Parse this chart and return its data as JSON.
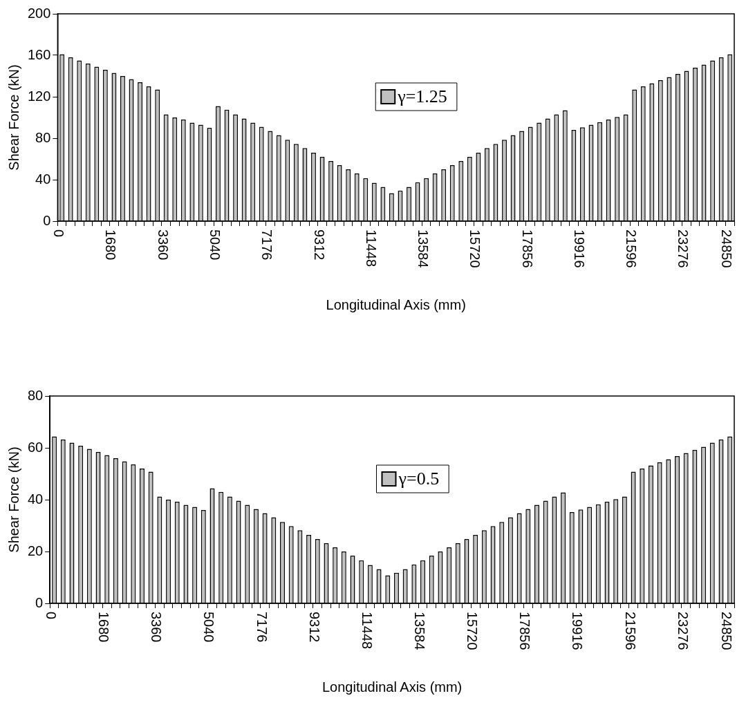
{
  "chart_data": [
    {
      "type": "bar",
      "xlabel": "Longitudinal Axis (mm)",
      "ylabel": "Shear Force (kN)",
      "legend": "center",
      "ylim": [
        0,
        200
      ],
      "yticks": [
        0,
        40,
        80,
        120,
        160,
        200
      ],
      "categories": [
        "0",
        null,
        null,
        null,
        null,
        null,
        "1680",
        null,
        null,
        null,
        null,
        null,
        "3360",
        null,
        null,
        null,
        null,
        null,
        "5040",
        null,
        null,
        null,
        null,
        null,
        "7176",
        null,
        null,
        null,
        null,
        null,
        "9312",
        null,
        null,
        null,
        null,
        null,
        "11448",
        null,
        null,
        null,
        null,
        null,
        "13584",
        null,
        null,
        null,
        null,
        null,
        "15720",
        null,
        null,
        null,
        null,
        null,
        "17856",
        null,
        null,
        null,
        null,
        null,
        "19916",
        null,
        null,
        null,
        null,
        null,
        "21596",
        null,
        null,
        null,
        null,
        null,
        "23276",
        null,
        null,
        null,
        null,
        "24850"
      ],
      "series": [
        {
          "name": "γ=1.25",
          "color": "#c0c0c0",
          "values": [
            161,
            158,
            155,
            152,
            149,
            146,
            143,
            140,
            137,
            134,
            130,
            127,
            103,
            100,
            98,
            95,
            93,
            90,
            111,
            107.5,
            103,
            99,
            95,
            91,
            87,
            83,
            78.5,
            74.5,
            70.5,
            66,
            62,
            58,
            54,
            50,
            46,
            41.5,
            37,
            33,
            27,
            29.5,
            33,
            37.5,
            41.5,
            46,
            50,
            54,
            58,
            62,
            66,
            70.5,
            74.5,
            78.5,
            83,
            87,
            91,
            95,
            99,
            103,
            107,
            88,
            90.5,
            93,
            95.5,
            98,
            100.5,
            103,
            127,
            130,
            133,
            136,
            139,
            142,
            145,
            148,
            151,
            155,
            158,
            161
          ]
        }
      ]
    },
    {
      "type": "bar",
      "xlabel": "Longitudinal Axis (mm)",
      "ylabel": "Shear Force (kN)",
      "legend": "center",
      "ylim": [
        0,
        80
      ],
      "yticks": [
        0,
        20,
        40,
        60,
        80
      ],
      "categories": [
        "0",
        null,
        null,
        null,
        null,
        null,
        "1680",
        null,
        null,
        null,
        null,
        null,
        "3360",
        null,
        null,
        null,
        null,
        null,
        "5040",
        null,
        null,
        null,
        null,
        null,
        "7176",
        null,
        null,
        null,
        null,
        null,
        "9312",
        null,
        null,
        null,
        null,
        null,
        "11448",
        null,
        null,
        null,
        null,
        null,
        "13584",
        null,
        null,
        null,
        null,
        null,
        "15720",
        null,
        null,
        null,
        null,
        null,
        "17856",
        null,
        null,
        null,
        null,
        null,
        "19916",
        null,
        null,
        null,
        null,
        null,
        "21596",
        null,
        null,
        null,
        null,
        null,
        "23276",
        null,
        null,
        null,
        null,
        "24850"
      ],
      "series": [
        {
          "name": "γ=0.5",
          "color": "#c0c0c0",
          "values": [
            64.4,
            63.2,
            62,
            60.8,
            59.6,
            58.4,
            57.2,
            56,
            54.8,
            53.6,
            52,
            50.8,
            41.2,
            40,
            39.2,
            38,
            37.2,
            36,
            44.4,
            43,
            41.2,
            39.6,
            38,
            36.4,
            34.8,
            33.2,
            31.4,
            29.8,
            28.2,
            26.4,
            24.8,
            23.2,
            21.6,
            20,
            18.4,
            16.6,
            14.8,
            13.2,
            10.8,
            11.8,
            13.2,
            15,
            16.6,
            18.4,
            20,
            21.6,
            23.2,
            24.8,
            26.4,
            28.2,
            29.8,
            31.4,
            33.2,
            34.8,
            36.4,
            38,
            39.6,
            41.2,
            42.8,
            35.2,
            36.2,
            37.2,
            38.2,
            39.2,
            40.2,
            41.2,
            50.8,
            52,
            53.2,
            54.4,
            55.6,
            56.8,
            58,
            59.2,
            60.4,
            62,
            63.2,
            64.4
          ]
        }
      ]
    }
  ]
}
